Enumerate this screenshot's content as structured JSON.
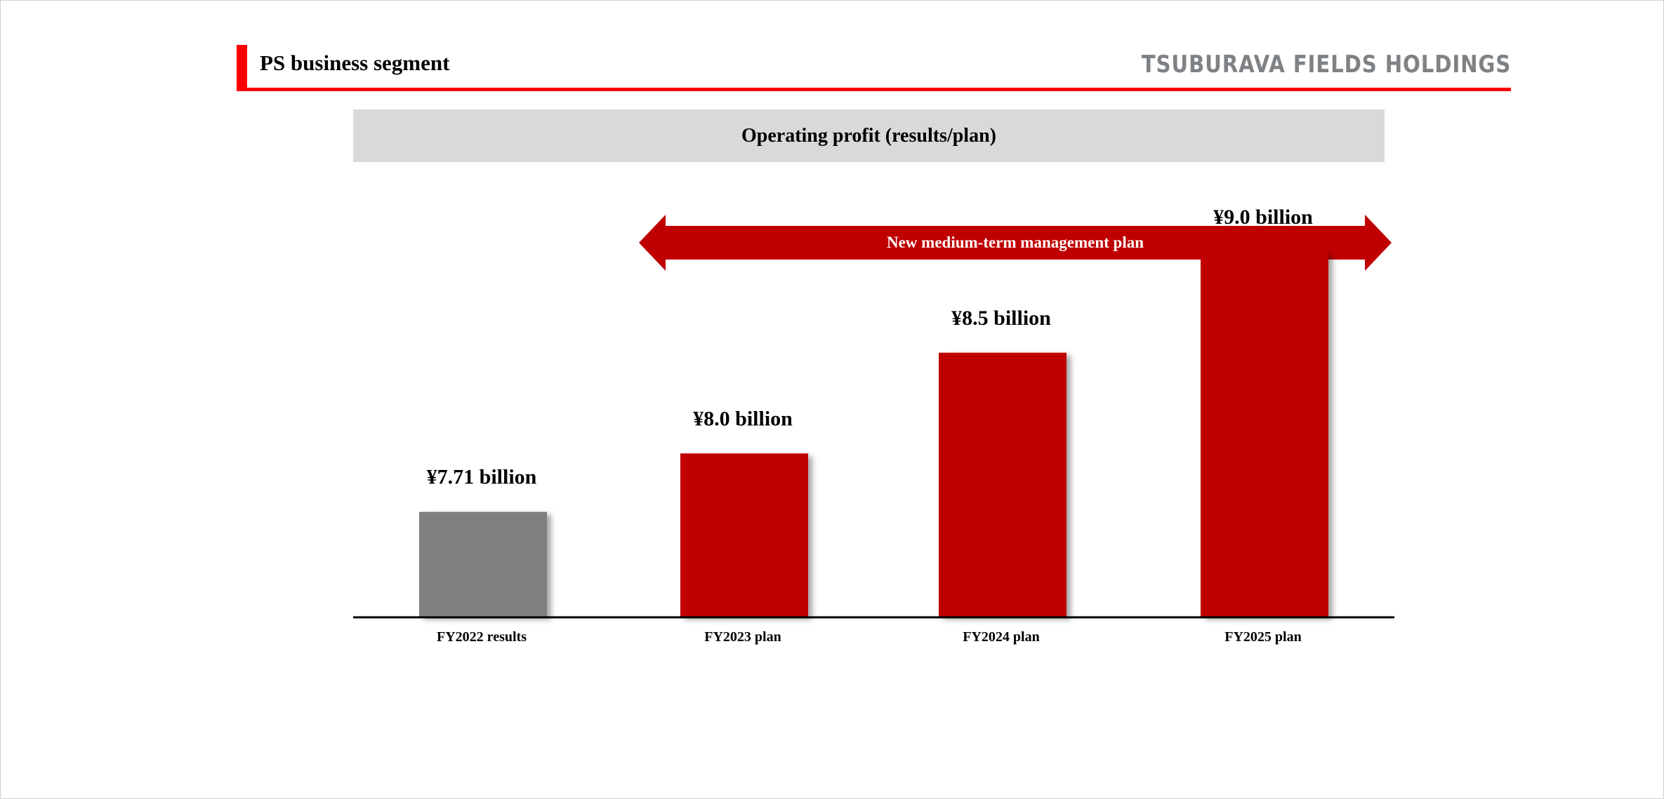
{
  "header": {
    "title": "PS business segment",
    "logo": "TSUBURAVA FIELDS HOLDINGS"
  },
  "colors": {
    "accent": "#ff0000",
    "plan_bar": "#c00000",
    "results_bar": "#808080",
    "header_bg": "#d9d9d9",
    "logo": "#7f8285"
  },
  "banner": {
    "arrow_label": "New medium-term management plan"
  },
  "chart_data": {
    "type": "bar",
    "title": "Operating profit (results/plan)",
    "categories": [
      "FY2022 results",
      "FY2023 plan",
      "FY2024 plan",
      "FY2025 plan"
    ],
    "values": [
      7.71,
      8.0,
      8.5,
      9.0
    ],
    "data_labels": [
      "¥7.71 billion",
      "¥8.0 billion",
      "¥8.5 billion",
      "¥9.0 billion"
    ],
    "bar_colors": [
      "#808080",
      "#c00000",
      "#c00000",
      "#c00000"
    ],
    "units": "¥ billion",
    "xlabel": "",
    "ylabel": "",
    "grid": false,
    "legend": "none"
  }
}
